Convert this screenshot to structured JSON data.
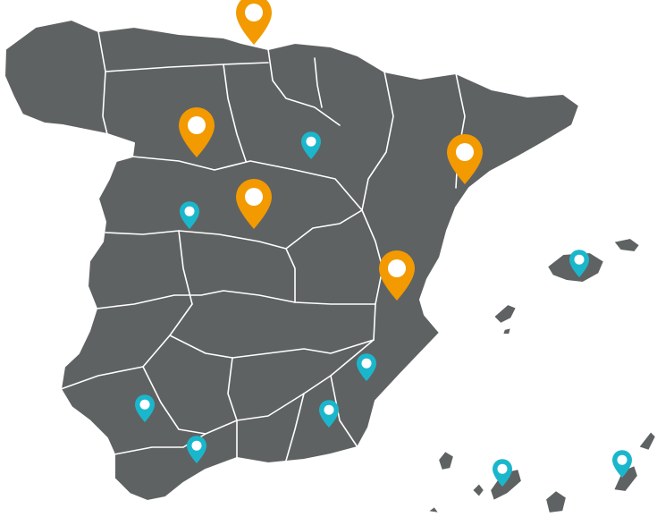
{
  "map": {
    "land_color": "#5f6263",
    "border_color": "#ffffff",
    "markers": [
      {
        "id": "marker-bilbao",
        "kind": "large",
        "color": "#f29a00"
      },
      {
        "id": "marker-leon",
        "kind": "large",
        "color": "#f29a00"
      },
      {
        "id": "marker-madrid",
        "kind": "large",
        "color": "#f29a00"
      },
      {
        "id": "marker-zaragoza",
        "kind": "large",
        "color": "#f29a00"
      },
      {
        "id": "marker-valencia",
        "kind": "large",
        "color": "#f29a00"
      },
      {
        "id": "marker-soria",
        "kind": "small",
        "color": "#1ab7cc"
      },
      {
        "id": "marker-caceres",
        "kind": "small",
        "color": "#1ab7cc"
      },
      {
        "id": "marker-murcia",
        "kind": "small",
        "color": "#1ab7cc"
      },
      {
        "id": "marker-cordoba",
        "kind": "small",
        "color": "#1ab7cc"
      },
      {
        "id": "marker-granada",
        "kind": "small",
        "color": "#1ab7cc"
      },
      {
        "id": "marker-malaga",
        "kind": "small",
        "color": "#1ab7cc"
      },
      {
        "id": "marker-mallorca",
        "kind": "small",
        "color": "#1ab7cc"
      },
      {
        "id": "marker-tenerife",
        "kind": "small",
        "color": "#1ab7cc"
      },
      {
        "id": "marker-lanzarote",
        "kind": "small",
        "color": "#1ab7cc"
      }
    ]
  }
}
